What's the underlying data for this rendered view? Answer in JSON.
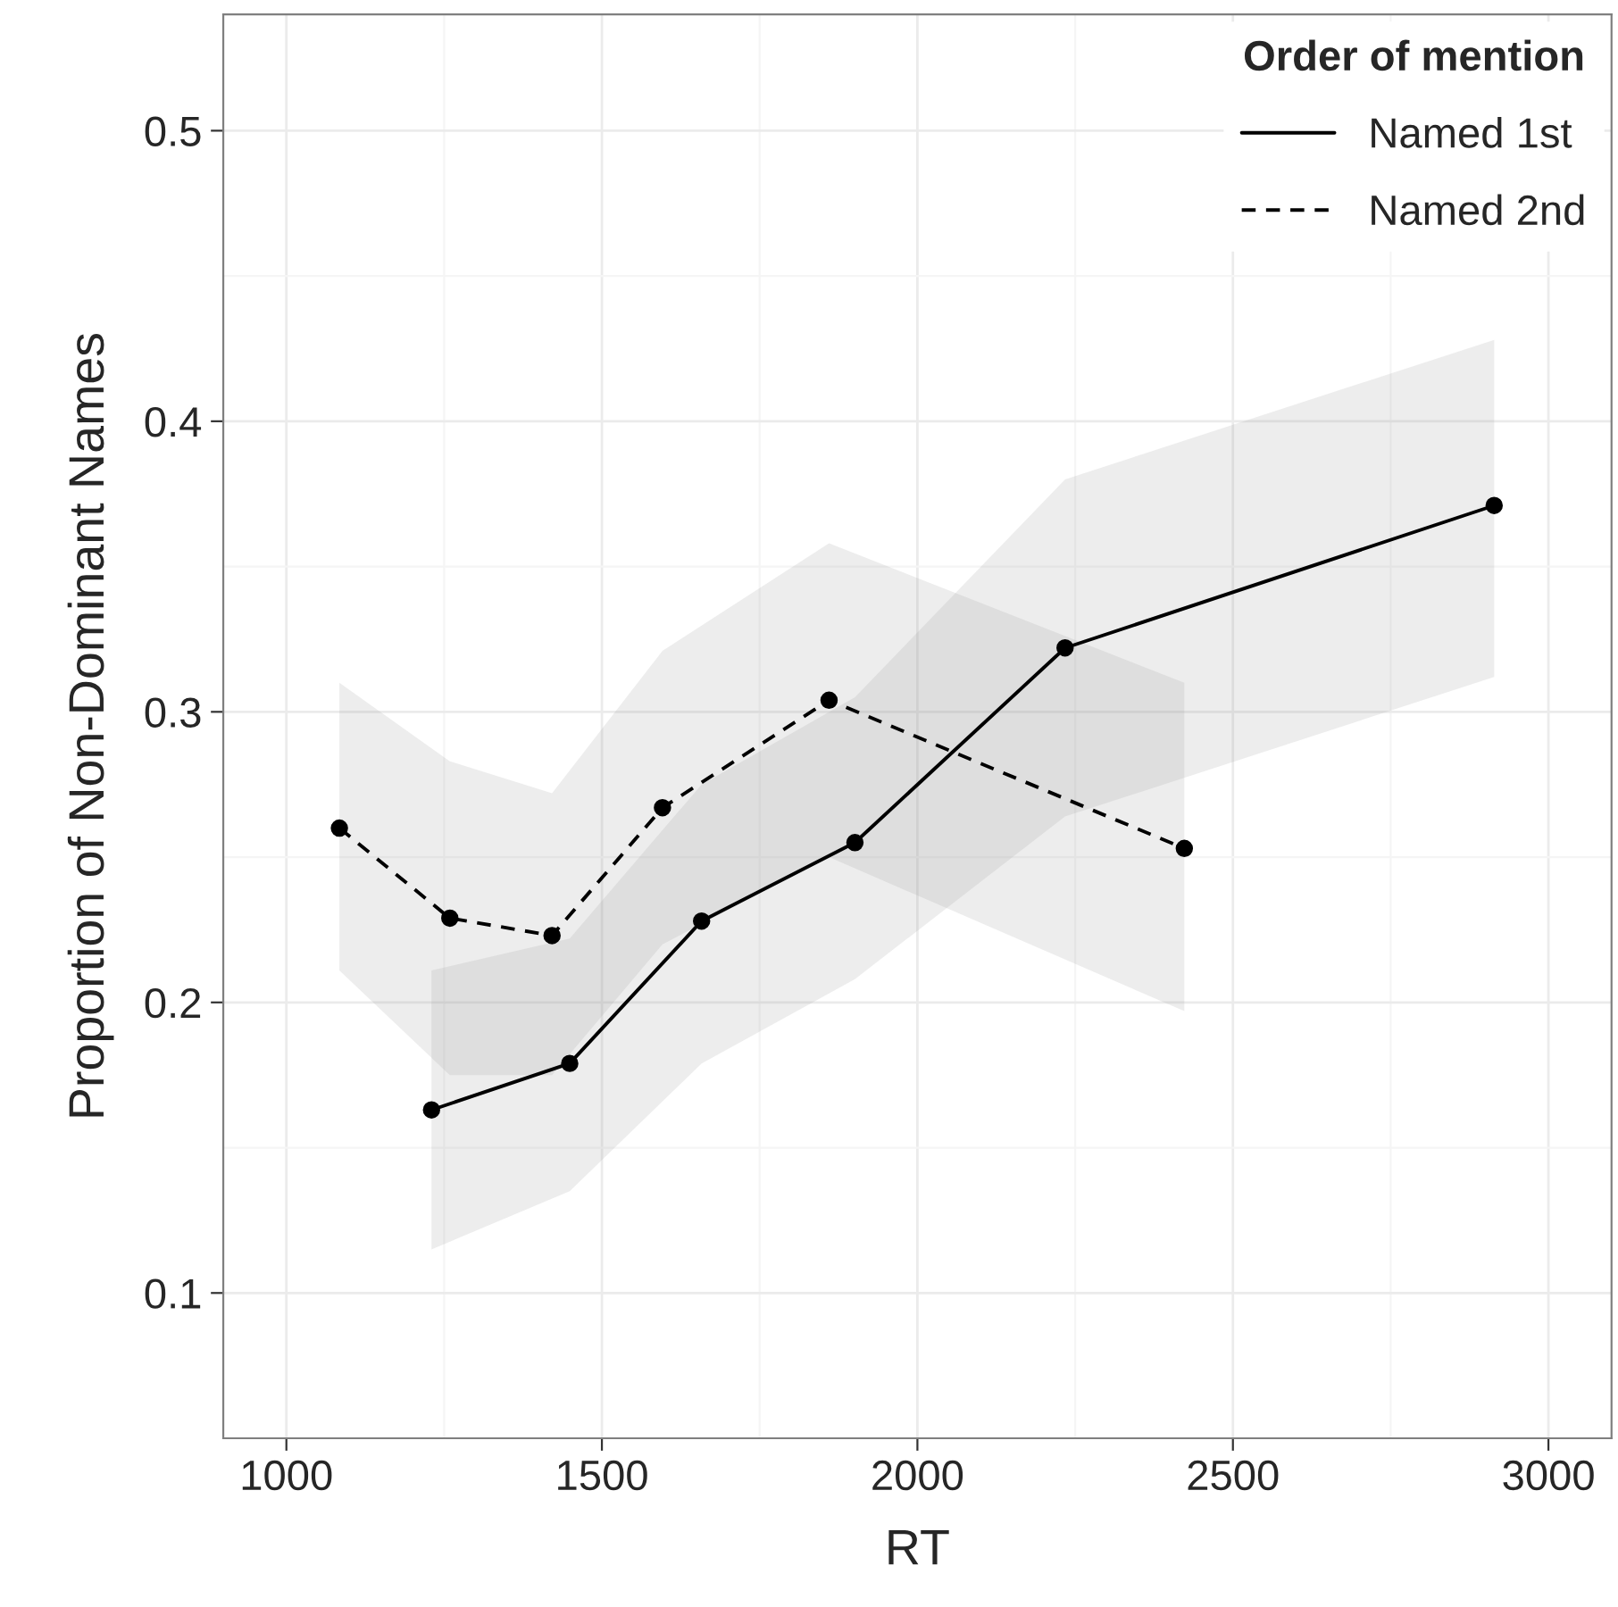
{
  "chart_data": {
    "type": "line",
    "xlabel": "RT",
    "ylabel": "Proportion of Non-Dominant Names",
    "legend_title": "Order of mention",
    "legend": "top right",
    "grid": true,
    "marker": "circle",
    "xlim": [
      900,
      3100
    ],
    "ylim": [
      0.05,
      0.54
    ],
    "xticks": [
      1000,
      1500,
      2000,
      2500,
      3000
    ],
    "yticks": [
      0.1,
      0.2,
      0.3,
      0.4,
      0.5
    ],
    "series": [
      {
        "name": "Named 1st",
        "color": "#000000",
        "line_style": "solid",
        "x": [
          1230,
          1449,
          1658,
          1901,
          2234,
          2914
        ],
        "values": [
          0.163,
          0.179,
          0.228,
          0.255,
          0.322,
          0.371
        ],
        "lower": [
          0.115,
          0.135,
          0.179,
          0.208,
          0.264,
          0.312
        ],
        "upper": [
          0.211,
          0.222,
          0.275,
          0.305,
          0.38,
          0.428
        ]
      },
      {
        "name": "Named 2nd",
        "color": "#000000",
        "line_style": "dashed",
        "x": [
          1084,
          1259,
          1421,
          1596,
          1860,
          2423
        ],
        "values": [
          0.26,
          0.229,
          0.223,
          0.267,
          0.304,
          0.253
        ],
        "lower": [
          0.211,
          0.175,
          0.175,
          0.22,
          0.25,
          0.197
        ],
        "upper": [
          0.31,
          0.283,
          0.272,
          0.321,
          0.358,
          0.31
        ]
      }
    ]
  }
}
